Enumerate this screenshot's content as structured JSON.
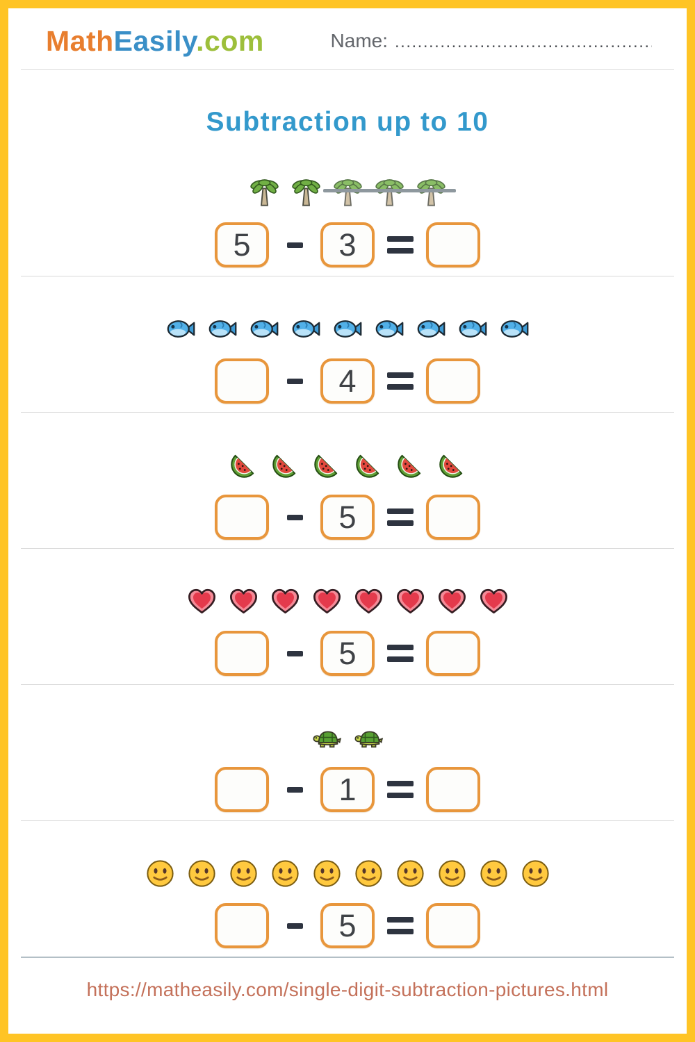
{
  "colors": {
    "page_border": "#FFC425",
    "box_border": "#E8963C",
    "title_blue": "#3399CC",
    "logo_orange": "#E87E2E",
    "logo_blue": "#3A8FC7",
    "logo_green": "#9DBF3B",
    "strike_gray": "#8e989e",
    "footer_link": "#C4715A"
  },
  "header": {
    "logo": {
      "math": "Math",
      "easily": "Easily",
      "com": ".com"
    },
    "name_label": "Name:",
    "name_dots": ".................................................."
  },
  "title": "Subtraction up to 10",
  "operators": {
    "minus": "-",
    "equals": "="
  },
  "problems": [
    {
      "icon": "palm-tree",
      "count": 5,
      "crossed": 3,
      "minuend": "5",
      "subtrahend": "3",
      "difference": ""
    },
    {
      "icon": "fish",
      "count": 9,
      "crossed": 0,
      "minuend": "",
      "subtrahend": "4",
      "difference": ""
    },
    {
      "icon": "watermelon",
      "count": 6,
      "crossed": 0,
      "minuend": "",
      "subtrahend": "5",
      "difference": ""
    },
    {
      "icon": "heart",
      "count": 8,
      "crossed": 0,
      "minuend": "",
      "subtrahend": "5",
      "difference": ""
    },
    {
      "icon": "turtle",
      "count": 2,
      "crossed": 0,
      "minuend": "",
      "subtrahend": "1",
      "difference": ""
    },
    {
      "icon": "smiley",
      "count": 10,
      "crossed": 0,
      "minuend": "",
      "subtrahend": "5",
      "difference": ""
    }
  ],
  "footer": {
    "url": "https://matheasily.com/single-digit-subtraction-pictures.html"
  }
}
